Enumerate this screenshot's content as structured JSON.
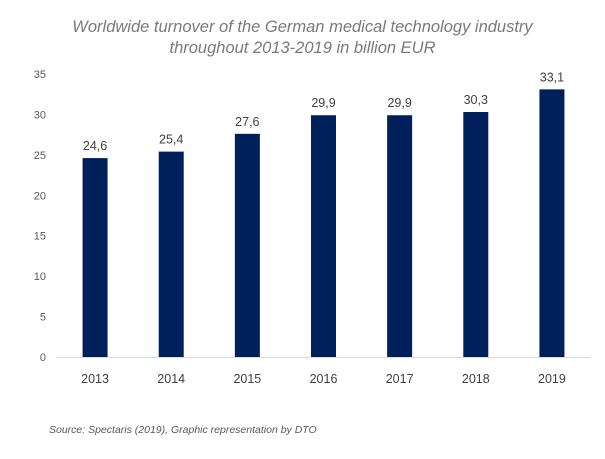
{
  "chart_data": {
    "type": "bar",
    "title_lines": [
      "Worldwide turnover of the German medical technology industry",
      "throughout 2013-2019 in billion EUR"
    ],
    "categories": [
      "2013",
      "2014",
      "2015",
      "2016",
      "2017",
      "2018",
      "2019"
    ],
    "values": [
      24.6,
      25.4,
      27.6,
      29.9,
      29.9,
      30.3,
      33.1
    ],
    "data_labels": [
      "24,6",
      "25,4",
      "27,6",
      "29,9",
      "29,9",
      "30,3",
      "33,1"
    ],
    "y_ticks": [
      "0",
      "5",
      "10",
      "15",
      "20",
      "25",
      "30",
      "35"
    ],
    "ylim": [
      0,
      35
    ],
    "grid": false,
    "legend": "none",
    "bar_color": "#00205b",
    "source": "Source: Spectaris (2019), Graphic representation by DTO"
  }
}
